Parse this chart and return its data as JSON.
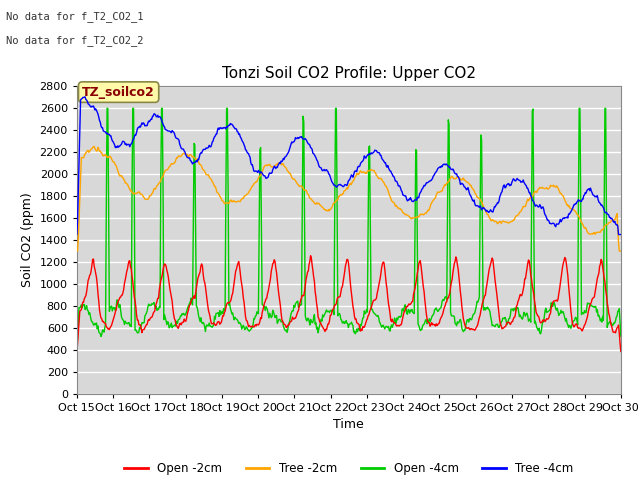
{
  "title": "Tonzi Soil CO2 Profile: Upper CO2",
  "ylabel": "Soil CO2 (ppm)",
  "xlabel": "Time",
  "ylim": [
    0,
    2800
  ],
  "yticks": [
    0,
    200,
    400,
    600,
    800,
    1000,
    1200,
    1400,
    1600,
    1800,
    2000,
    2200,
    2400,
    2600,
    2800
  ],
  "xtick_labels": [
    "Oct 15",
    "Oct 16",
    "Oct 17",
    "Oct 18",
    "Oct 19",
    "Oct 20",
    "Oct 21",
    "Oct 22",
    "Oct 23",
    "Oct 24",
    "Oct 25",
    "Oct 26",
    "Oct 27",
    "Oct 28",
    "Oct 29",
    "Oct 30"
  ],
  "legend_entries": [
    "Open -2cm",
    "Tree -2cm",
    "Open -4cm",
    "Tree -4cm"
  ],
  "legend_colors": [
    "#ff0000",
    "#ffa500",
    "#00cc00",
    "#0000ff"
  ],
  "no_data_text_1": "No data for f_T2_CO2_1",
  "no_data_text_2": "No data for f_T2_CO2_2",
  "annotation_box": "TZ_soilco2",
  "plot_bg_color": "#d8d8d8",
  "grid_color": "#ffffff",
  "title_fontsize": 11,
  "axis_fontsize": 9,
  "tick_fontsize": 8
}
